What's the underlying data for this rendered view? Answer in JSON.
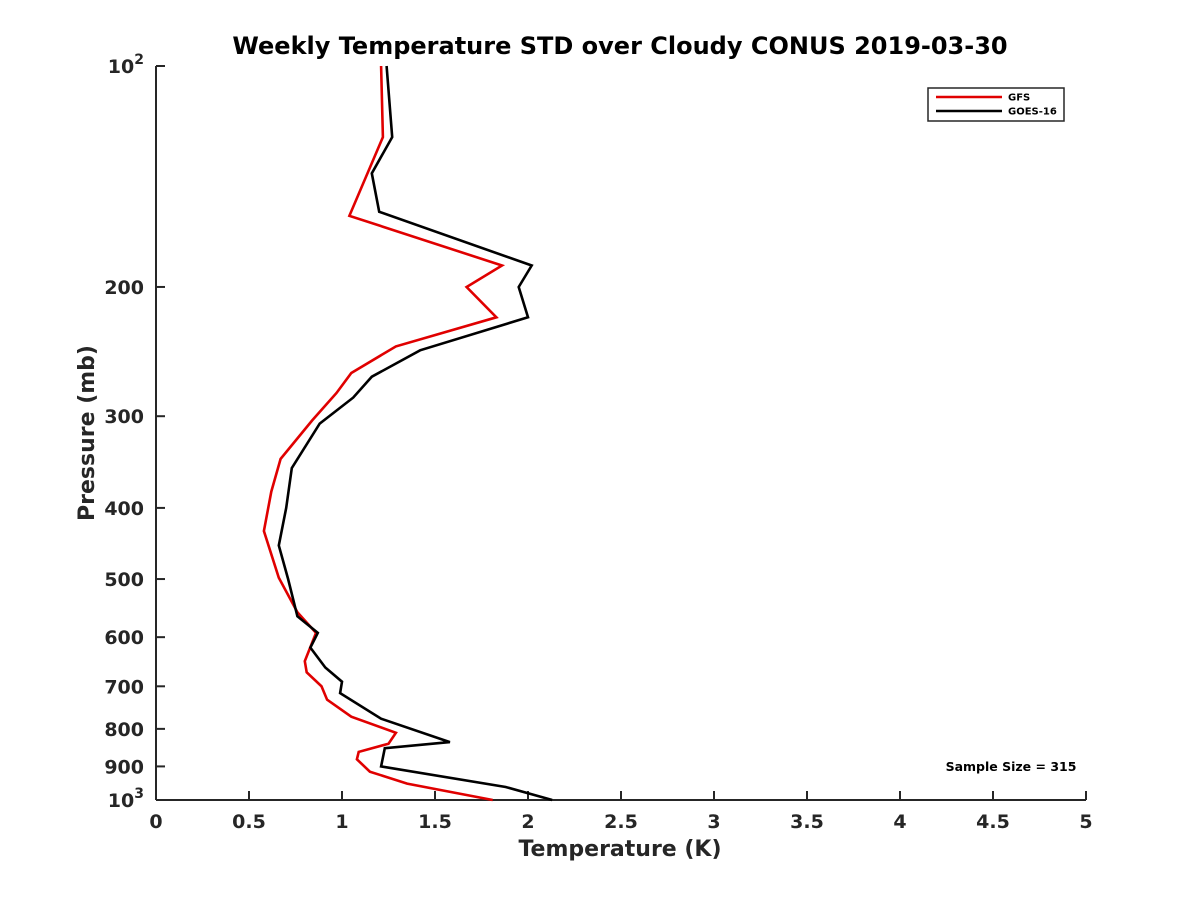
{
  "chart_data": {
    "type": "line",
    "title": "Weekly Temperature STD over Cloudy CONUS 2019-03-30",
    "xlabel": "Temperature (K)",
    "ylabel": "Pressure (mb)",
    "xlim": [
      0,
      5
    ],
    "ylim": [
      100,
      1000
    ],
    "y_scale": "log",
    "y_reversed": true,
    "x_ticks": [
      0,
      0.5,
      1,
      1.5,
      2,
      2.5,
      3,
      3.5,
      4,
      4.5,
      5
    ],
    "x_tick_labels": [
      "0",
      "0.5",
      "1",
      "1.5",
      "2",
      "2.5",
      "3",
      "3.5",
      "4",
      "4.5",
      "5"
    ],
    "y_ticks": [
      {
        "value": 100,
        "base": "10",
        "exp": "2"
      },
      {
        "value": 200,
        "base": "200",
        "exp": ""
      },
      {
        "value": 300,
        "base": "300",
        "exp": ""
      },
      {
        "value": 400,
        "base": "400",
        "exp": ""
      },
      {
        "value": 500,
        "base": "500",
        "exp": ""
      },
      {
        "value": 600,
        "base": "600",
        "exp": ""
      },
      {
        "value": 700,
        "base": "700",
        "exp": ""
      },
      {
        "value": 800,
        "base": "800",
        "exp": ""
      },
      {
        "value": 900,
        "base": "900",
        "exp": ""
      },
      {
        "value": 1000,
        "base": "10",
        "exp": "3"
      }
    ],
    "grid": false,
    "legend_position": "top-right",
    "annotation": "Sample Size = 315",
    "series": [
      {
        "name": "GFS",
        "color": "#e00000",
        "points": [
          [
            1.21,
            100
          ],
          [
            1.22,
            125
          ],
          [
            1.04,
            160
          ],
          [
            1.86,
            187
          ],
          [
            1.67,
            200
          ],
          [
            1.83,
            220
          ],
          [
            1.29,
            241
          ],
          [
            1.05,
            262
          ],
          [
            0.97,
            279
          ],
          [
            0.84,
            304
          ],
          [
            0.67,
            343
          ],
          [
            0.62,
            380
          ],
          [
            0.58,
            430
          ],
          [
            0.66,
            498
          ],
          [
            0.76,
            555
          ],
          [
            0.86,
            592
          ],
          [
            0.8,
            647
          ],
          [
            0.81,
            670
          ],
          [
            0.89,
            700
          ],
          [
            0.92,
            730
          ],
          [
            1.05,
            770
          ],
          [
            1.29,
            810
          ],
          [
            1.25,
            838
          ],
          [
            1.09,
            860
          ],
          [
            1.08,
            880
          ],
          [
            1.15,
            915
          ],
          [
            1.35,
            950
          ],
          [
            1.81,
            1000
          ]
        ]
      },
      {
        "name": "GOES-16",
        "color": "#000000",
        "points": [
          [
            1.24,
            100
          ],
          [
            1.27,
            125
          ],
          [
            1.16,
            140
          ],
          [
            1.2,
            158
          ],
          [
            2.02,
            187
          ],
          [
            1.95,
            200
          ],
          [
            2.0,
            220
          ],
          [
            1.42,
            244
          ],
          [
            1.16,
            265
          ],
          [
            1.06,
            283
          ],
          [
            0.88,
            307
          ],
          [
            0.73,
            353
          ],
          [
            0.7,
            400
          ],
          [
            0.66,
            450
          ],
          [
            0.71,
            500
          ],
          [
            0.76,
            562
          ],
          [
            0.87,
            592
          ],
          [
            0.83,
            620
          ],
          [
            0.91,
            660
          ],
          [
            1.0,
            690
          ],
          [
            0.99,
            715
          ],
          [
            1.21,
            775
          ],
          [
            1.58,
            834
          ],
          [
            1.23,
            850
          ],
          [
            1.21,
            900
          ],
          [
            1.88,
            960
          ],
          [
            2.13,
            1000
          ]
        ]
      }
    ]
  }
}
